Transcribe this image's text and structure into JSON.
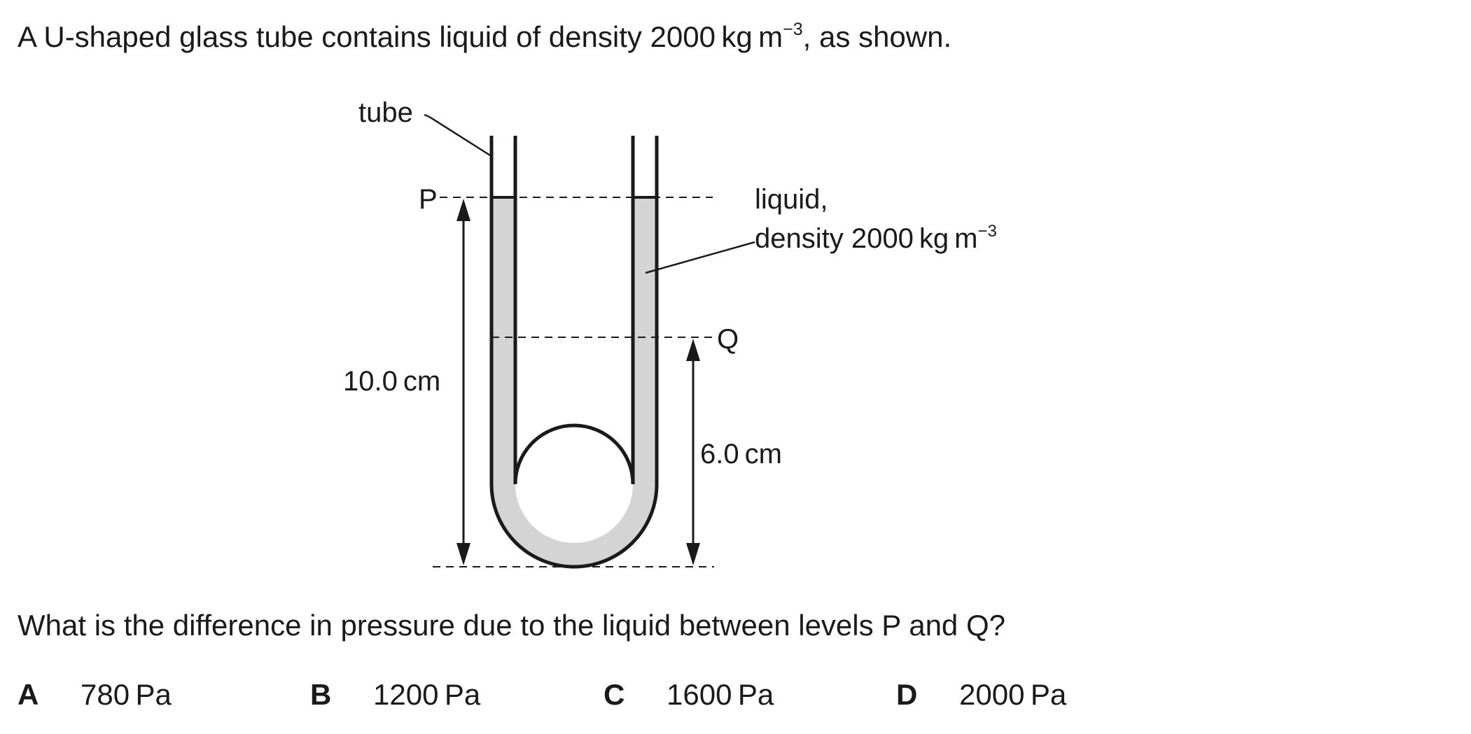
{
  "question": {
    "intro_before": "A U-shaped glass tube contains liquid of density 2000 kg m",
    "intro_sup": "−3",
    "intro_after": ", as shown.",
    "prompt": "What is the difference in pressure due to the liquid between levels P and Q?"
  },
  "figure": {
    "tube_label": "tube",
    "label_p": "P",
    "label_q": "Q",
    "liquid_label_line1": "liquid,",
    "liquid_label_line2": "density 2000 kg m",
    "liquid_label_sup": "−3",
    "height_p": "10.0 cm",
    "height_q": "6.0 cm",
    "liquid_color": "#d4d4d4"
  },
  "options": [
    {
      "letter": "A",
      "value": "780 Pa"
    },
    {
      "letter": "B",
      "value": "1200 Pa"
    },
    {
      "letter": "C",
      "value": "1600 Pa"
    },
    {
      "letter": "D",
      "value": "2000 Pa"
    }
  ]
}
